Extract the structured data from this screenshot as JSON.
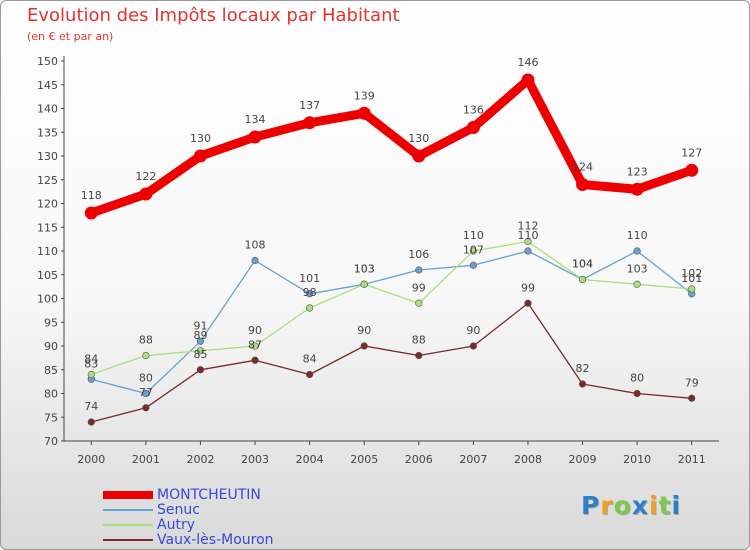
{
  "title": "Evolution des Impôts locaux par Habitant",
  "subtitle": "(en € et par an)",
  "chart_data": {
    "type": "line",
    "title": "Evolution des Impôts locaux par Habitant",
    "subtitle": "(en € et par an)",
    "xlabel": "",
    "ylabel": "",
    "ylim": [
      70,
      150
    ],
    "ytick_step": 5,
    "grid": false,
    "legend_position": "bottom-left",
    "categories": [
      "2000",
      "2001",
      "2002",
      "2003",
      "2004",
      "2005",
      "2006",
      "2007",
      "2008",
      "2009",
      "2010",
      "2011"
    ],
    "series": [
      {
        "name": "MONTCHEUTIN",
        "color": "#ee0000",
        "values": [
          118,
          122,
          130,
          134,
          137,
          139,
          130,
          136,
          146,
          124,
          123,
          127
        ]
      },
      {
        "name": "Senuc",
        "color": "#6aa0d0",
        "values": [
          83,
          80,
          91,
          108,
          101,
          103,
          106,
          107,
          110,
          104,
          110,
          101
        ]
      },
      {
        "name": "Autry",
        "color": "#a8e07a",
        "values": [
          84,
          88,
          89,
          90,
          98,
          103,
          99,
          110,
          112,
          104,
          103,
          102
        ]
      },
      {
        "name": "Vaux-lès-Mouron",
        "color": "#7a2a2a",
        "values": [
          74,
          77,
          85,
          87,
          84,
          90,
          88,
          90,
          99,
          82,
          80,
          79
        ]
      }
    ]
  },
  "logo": {
    "letters": [
      "P",
      "r",
      "o",
      "x",
      "i",
      "t",
      "i"
    ],
    "colors": [
      "#2e7fc8",
      "#f0a020",
      "#7ec850",
      "#2e7fc8",
      "#f0a020",
      "#7ec850",
      "#2e7fc8"
    ]
  }
}
